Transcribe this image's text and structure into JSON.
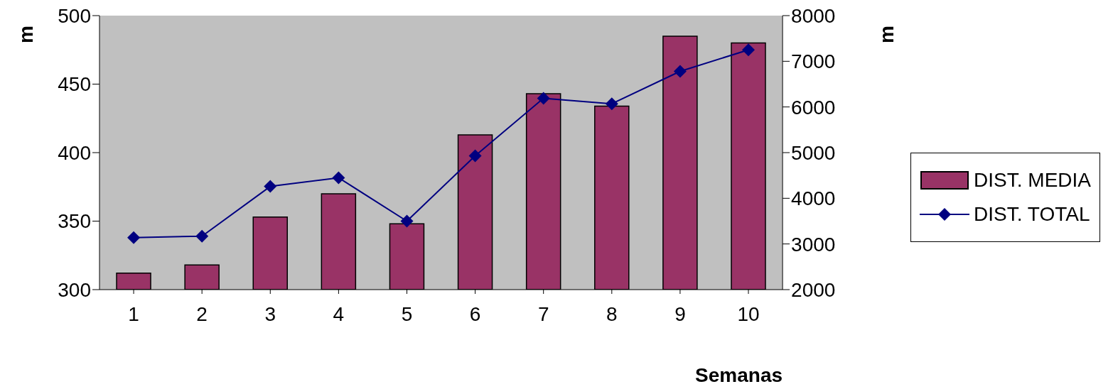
{
  "chart_data": {
    "type": "bar",
    "xlabel": "Semanas",
    "ylabel": "m",
    "y2label": "m",
    "categories": [
      "1",
      "2",
      "3",
      "4",
      "5",
      "6",
      "7",
      "8",
      "9",
      "10"
    ],
    "series": [
      {
        "name": "DIST. MEDIA",
        "color": "#993366",
        "values": [
          312,
          318,
          353,
          370,
          348,
          413,
          443,
          434,
          485,
          480
        ]
      },
      {
        "name": "DIST. TOTAL",
        "type": "line",
        "axis": "y2",
        "color": "#000080",
        "marker": "diamond",
        "values": [
          3140,
          3170,
          4260,
          4450,
          3500,
          4930,
          6190,
          6070,
          6780,
          7250
        ]
      }
    ],
    "ylim": [
      300,
      500
    ],
    "yticks": [
      300,
      350,
      400,
      450,
      500
    ],
    "y2lim": [
      2000,
      8000
    ],
    "y2ticks": [
      2000,
      3000,
      4000,
      5000,
      6000,
      7000,
      8000
    ],
    "grid": false,
    "legend": "right"
  }
}
